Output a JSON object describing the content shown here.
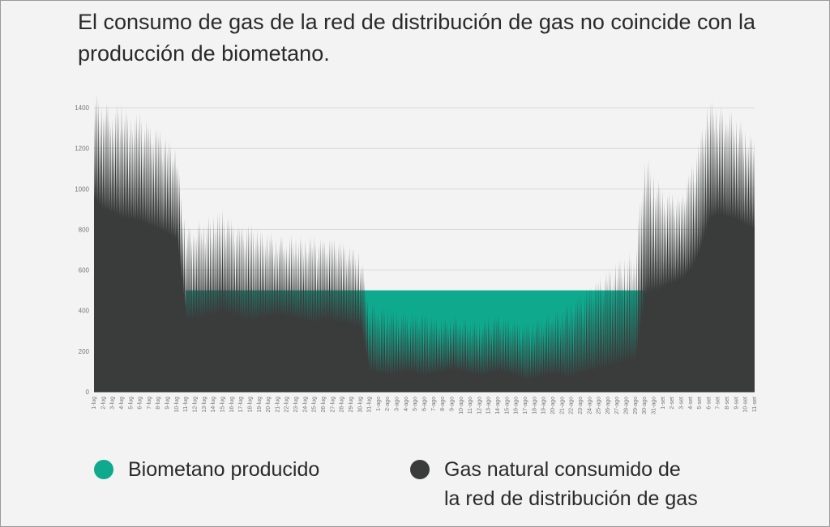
{
  "title": "El consumo de gas de la red de distribución de gas no coincide con la producción de biometano.",
  "legend": {
    "biomethane": {
      "label": "Biometano producido",
      "color": "#0fa98e"
    },
    "gas": {
      "label": "Gas natural consumido de\nla red de distribución de gas",
      "color": "#3a3c3c"
    }
  },
  "chart_data": {
    "type": "area",
    "ylim": [
      0,
      1500
    ],
    "yticks": [
      0,
      200,
      400,
      600,
      800,
      1000,
      1200,
      1400
    ],
    "grid": true,
    "x": [
      "1-lug",
      "2-lug",
      "3-lug",
      "4-lug",
      "5-lug",
      "6-lug",
      "7-lug",
      "8-lug",
      "9-lug",
      "10-lug",
      "11-lug",
      "12-lug",
      "13-lug",
      "14-lug",
      "15-lug",
      "16-lug",
      "17-lug",
      "18-lug",
      "19-lug",
      "20-lug",
      "21-lug",
      "22-lug",
      "23-lug",
      "24-lug",
      "25-lug",
      "26-lug",
      "27-lug",
      "28-lug",
      "29-lug",
      "30-lug",
      "31-lug",
      "1-ago",
      "2-ago",
      "3-ago",
      "4-ago",
      "5-ago",
      "6-ago",
      "7-ago",
      "8-ago",
      "9-ago",
      "10-ago",
      "11-ago",
      "12-ago",
      "13-ago",
      "14-ago",
      "15-ago",
      "16-ago",
      "17-ago",
      "18-ago",
      "19-ago",
      "20-ago",
      "21-ago",
      "22-ago",
      "23-ago",
      "24-ago",
      "25-ago",
      "26-ago",
      "27-ago",
      "28-ago",
      "29-ago",
      "30-ago",
      "31-ago",
      "1-set",
      "2-set",
      "3-set",
      "4-set",
      "5-set",
      "6-set",
      "7-set",
      "8-set",
      "9-set",
      "10-set",
      "11-set"
    ],
    "series": [
      {
        "key": "gas",
        "peak": [
          1480,
          1450,
          1400,
          1440,
          1350,
          1380,
          1320,
          1300,
          1250,
          1200,
          820,
          840,
          860,
          880,
          900,
          850,
          820,
          830,
          800,
          790,
          780,
          770,
          780,
          760,
          770,
          750,
          760,
          740,
          720,
          700,
          450,
          430,
          420,
          400,
          390,
          380,
          390,
          370,
          360,
          380,
          370,
          360,
          350,
          370,
          380,
          360,
          350,
          340,
          360,
          380,
          400,
          420,
          450,
          480,
          520,
          560,
          600,
          650,
          680,
          700,
          1200,
          1100,
          1000,
          980,
          960,
          1100,
          1250,
          1450,
          1420,
          1400,
          1380,
          1300,
          1250
        ],
        "trough": [
          950,
          900,
          880,
          860,
          850,
          840,
          820,
          800,
          780,
          750,
          350,
          360,
          370,
          380,
          400,
          380,
          360,
          350,
          360,
          370,
          380,
          370,
          360,
          350,
          340,
          360,
          350,
          340,
          330,
          320,
          100,
          90,
          80,
          90,
          100,
          90,
          80,
          90,
          100,
          110,
          100,
          90,
          80,
          90,
          100,
          90,
          80,
          60,
          70,
          80,
          90,
          80,
          70,
          90,
          100,
          110,
          120,
          140,
          150,
          160,
          480,
          500,
          520,
          540,
          560,
          600,
          700,
          850,
          880,
          860,
          850,
          820,
          800
        ]
      },
      {
        "key": "biomethane",
        "values": [
          0,
          0,
          0,
          0,
          0,
          0,
          0,
          0,
          0,
          0,
          500,
          500,
          500,
          500,
          500,
          500,
          500,
          500,
          500,
          500,
          500,
          500,
          500,
          500,
          500,
          500,
          500,
          500,
          500,
          500,
          500,
          500,
          500,
          500,
          500,
          500,
          500,
          500,
          500,
          500,
          500,
          500,
          500,
          500,
          500,
          500,
          500,
          500,
          500,
          500,
          500,
          500,
          500,
          500,
          500,
          500,
          500,
          500,
          500,
          500,
          500,
          0,
          0,
          0,
          0,
          0,
          0,
          0,
          0,
          0,
          0,
          0,
          0
        ]
      }
    ]
  }
}
